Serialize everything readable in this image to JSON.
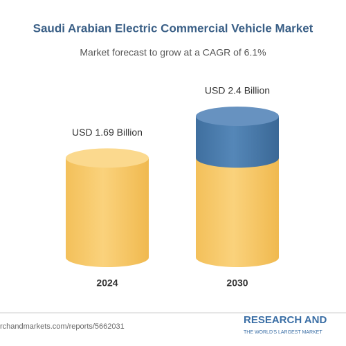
{
  "chart_data": {
    "type": "cylinder",
    "title": "Saudi Arabian Electric Commercial Vehicle Market",
    "subtitle": "Market forecast to grow at a CAGR of 6.1%",
    "categories": [
      "2024",
      "2030"
    ],
    "values": [
      1.69,
      2.4
    ],
    "value_labels": [
      "USD 1.69 Billion",
      "USD 2.4 Billion"
    ],
    "color": "#f6c867",
    "growth_color": "#4d7eb0"
  },
  "footer": {
    "url": "rchandmarkets.com/reports/5662031",
    "logo": "RESEARCH AND",
    "tagline": "THE WORLD'S LARGEST MARKET"
  }
}
